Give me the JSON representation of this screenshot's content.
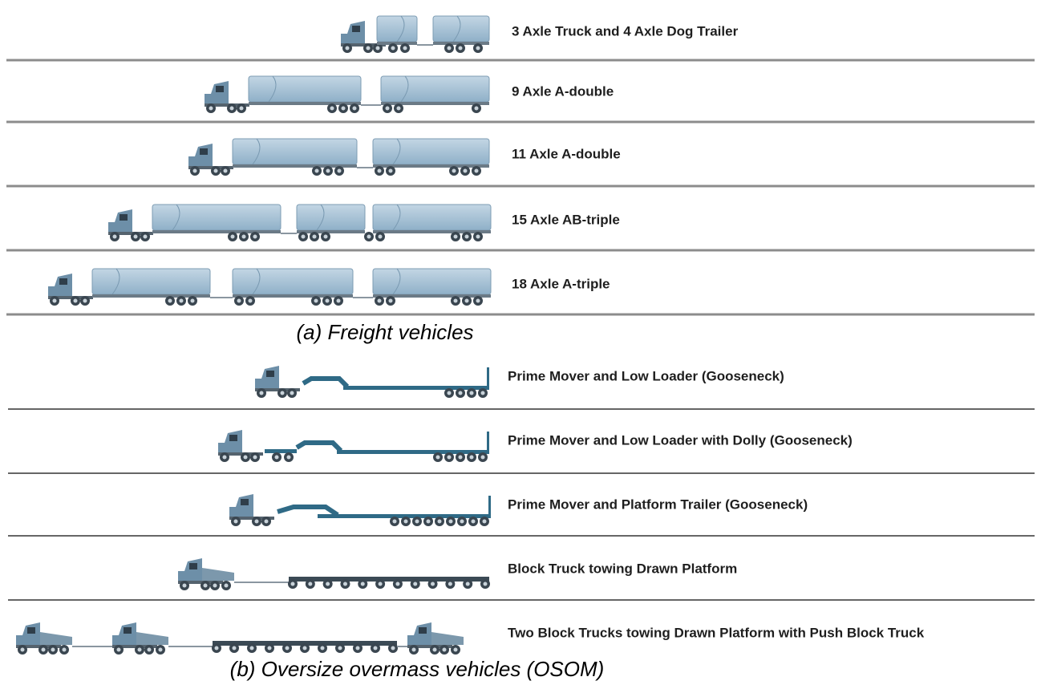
{
  "freight": {
    "rows": [
      "3 Axle Truck and 4 Axle Dog Trailer",
      "9 Axle A-double",
      "11 Axle A-double",
      "15 Axle AB-triple",
      "18 Axle A-triple"
    ],
    "caption": "(a) Freight vehicles"
  },
  "osom": {
    "rows": [
      "Prime Mover and Low Loader (Gooseneck)",
      "Prime Mover and Low Loader with Dolly (Gooseneck)",
      "Prime Mover and Platform Trailer (Gooseneck)",
      "Block Truck towing Drawn Platform",
      "Two Block Trucks towing Drawn Platform with Push Block Truck"
    ],
    "caption": "(b) Oversize overmass vehicles (OSOM)"
  }
}
